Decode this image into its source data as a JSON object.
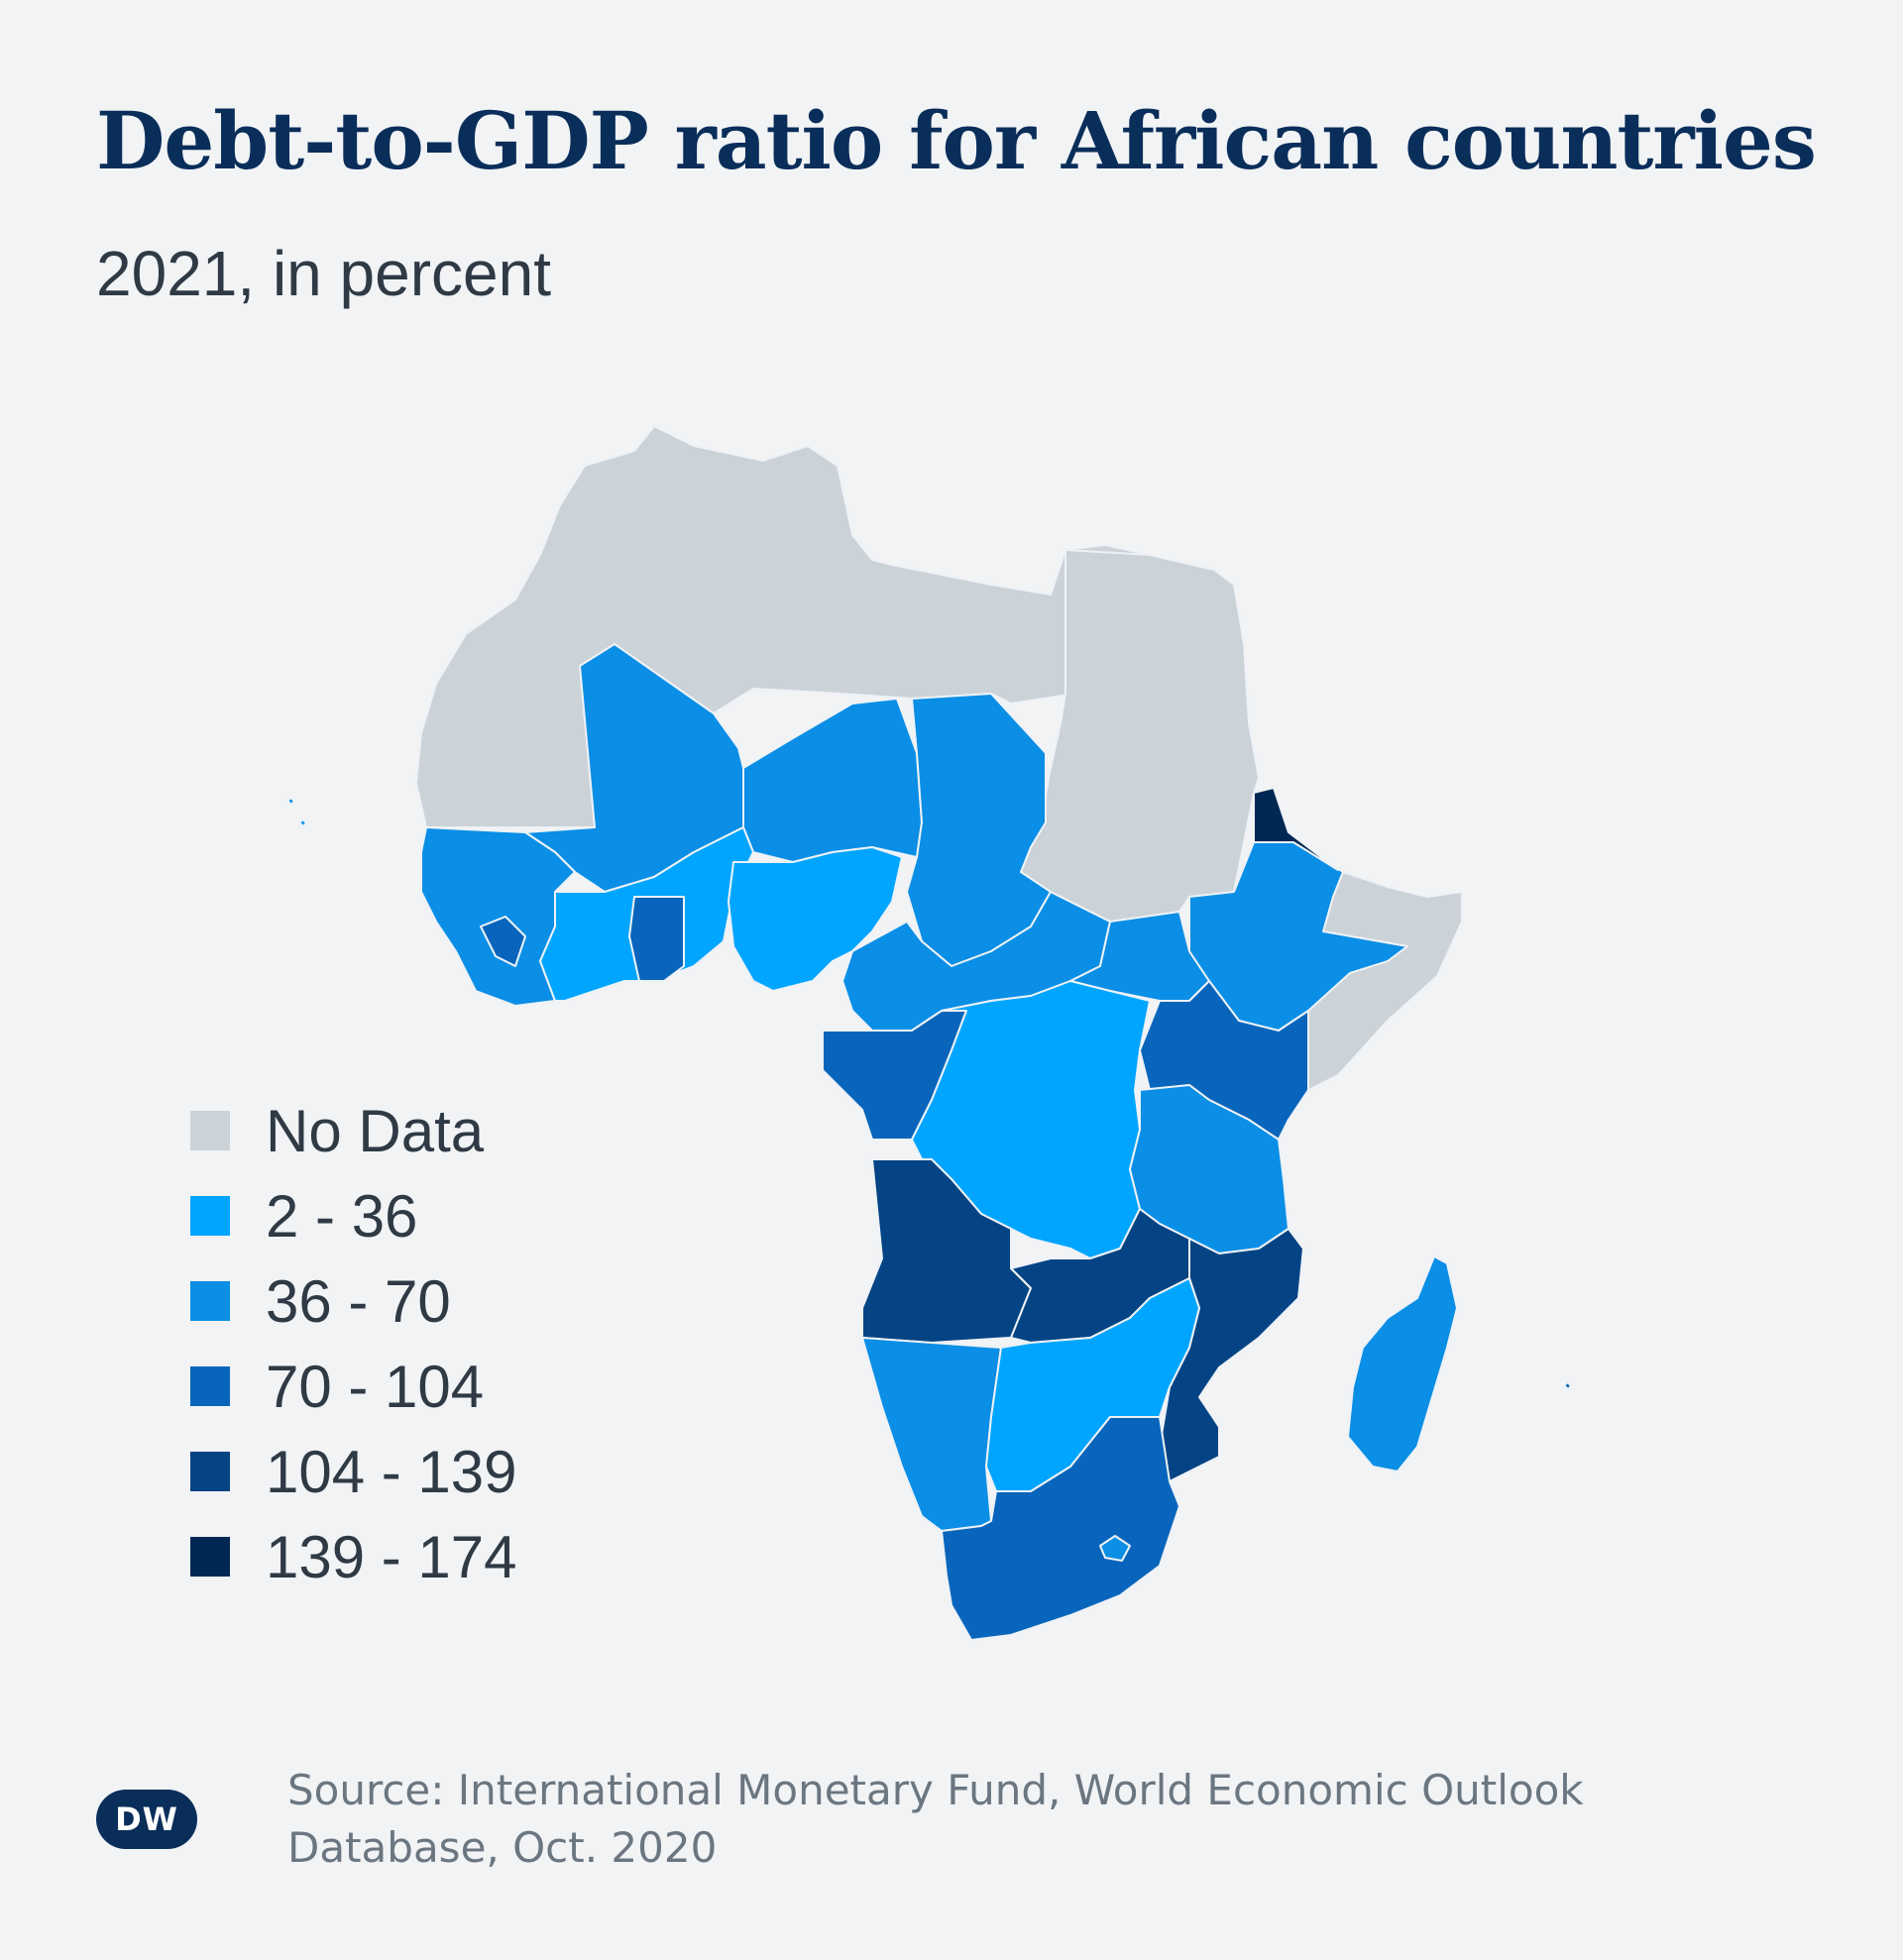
{
  "header": {
    "title": "Debt-to-GDP ratio for African countries",
    "subtitle": "2021, in percent"
  },
  "legend": {
    "items": [
      {
        "label": "No Data",
        "color": "#cbd2d8"
      },
      {
        "label": "2 - 36",
        "color": "#00a5ff"
      },
      {
        "label": "36 - 70",
        "color": "#0a8ee6"
      },
      {
        "label": "70 - 104",
        "color": "#0865bb"
      },
      {
        "label": "104 - 139",
        "color": "#044484"
      },
      {
        "label": "139 - 174",
        "color": "#002852"
      }
    ]
  },
  "source": {
    "text": "Source: International Monetary Fund, World Economic Outlook Database, Oct. 2020"
  },
  "branding": {
    "logo_text": "DW"
  }
}
